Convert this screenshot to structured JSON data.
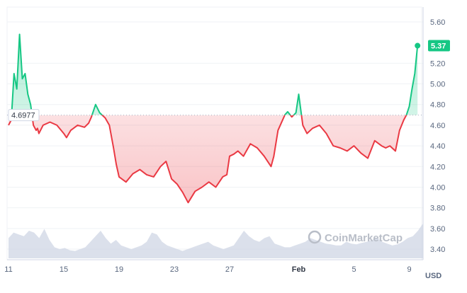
{
  "chart_data": {
    "type": "line",
    "currency": "USD",
    "watermark": "CoinMarketCap",
    "reference_price": 4.6977,
    "reference_label": "4.6977",
    "last_price": 5.37,
    "last_label": "5.37",
    "y_ticks": [
      "5.60",
      "5.20",
      "5.00",
      "4.80",
      "4.60",
      "4.40",
      "4.20",
      "4.00",
      "3.80",
      "3.60",
      "3.40"
    ],
    "y_tick_values": [
      5.6,
      5.2,
      5.0,
      4.8,
      4.6,
      4.4,
      4.2,
      4.0,
      3.8,
      3.6,
      3.4
    ],
    "ylim": [
      3.4,
      5.6
    ],
    "x_ticks": [
      "11",
      "15",
      "19",
      "23",
      "27",
      "Feb",
      "5",
      "9"
    ],
    "x_tick_days": [
      11,
      15,
      19,
      23,
      27,
      32,
      36,
      40
    ],
    "xlim": [
      11,
      41
    ],
    "colors": {
      "up": "#16c784",
      "down": "#ea3943",
      "volume": "#cfd6e4",
      "grid": "#eff2f5"
    },
    "series": [
      {
        "x": [
          11,
          11.2,
          11.4,
          11.6,
          11.8,
          12.0,
          12.2,
          12.4,
          12.6,
          12.8,
          13.0,
          13.1,
          13.2,
          13.5,
          14.0,
          14.5,
          15.0,
          15.2,
          15.5,
          16.0,
          16.5,
          16.8,
          17.0,
          17.3,
          17.6,
          18.0,
          18.3,
          18.6,
          18.8,
          19.0,
          19.5,
          20.0,
          20.5,
          21.0,
          21.5,
          22.0,
          22.4,
          22.8,
          23.2,
          23.6,
          24.0,
          24.5,
          25.0,
          25.5,
          26.0,
          26.5,
          26.8,
          27.0,
          27.3,
          27.6,
          28.0,
          28.5,
          29.0,
          29.5,
          30.0,
          30.2,
          30.5,
          31.0,
          31.2,
          31.5,
          31.8,
          32.0,
          32.3,
          32.6,
          33.0,
          33.5,
          34.0,
          34.5,
          35.0,
          35.5,
          36.0,
          36.5,
          37.0,
          37.5,
          38.0,
          38.3,
          38.6,
          39.0,
          39.3,
          39.6,
          39.8,
          40.0,
          40.2,
          40.4,
          40.6
        ],
        "y": [
          4.6,
          4.65,
          5.1,
          4.95,
          5.48,
          5.05,
          5.1,
          4.9,
          4.8,
          4.6,
          4.55,
          4.57,
          4.52,
          4.6,
          4.63,
          4.6,
          4.52,
          4.48,
          4.55,
          4.6,
          4.58,
          4.62,
          4.68,
          4.8,
          4.72,
          4.67,
          4.6,
          4.38,
          4.22,
          4.1,
          4.05,
          4.13,
          4.17,
          4.12,
          4.1,
          4.2,
          4.25,
          4.08,
          4.03,
          3.95,
          3.85,
          3.96,
          4.0,
          4.05,
          4.0,
          4.1,
          4.12,
          4.3,
          4.32,
          4.35,
          4.3,
          4.42,
          4.38,
          4.3,
          4.2,
          4.3,
          4.55,
          4.7,
          4.73,
          4.68,
          4.72,
          4.9,
          4.6,
          4.52,
          4.57,
          4.6,
          4.52,
          4.4,
          4.38,
          4.35,
          4.4,
          4.33,
          4.28,
          4.45,
          4.4,
          4.38,
          4.4,
          4.35,
          4.55,
          4.65,
          4.7,
          4.78,
          4.95,
          5.1,
          5.37
        ]
      }
    ],
    "volume_relative": [
      0.55,
      0.7,
      0.65,
      0.6,
      0.75,
      0.7,
      0.55,
      0.8,
      0.5,
      0.3,
      0.25,
      0.28,
      0.22,
      0.2,
      0.25,
      0.3,
      0.45,
      0.6,
      0.75,
      0.55,
      0.4,
      0.5,
      0.35,
      0.3,
      0.25,
      0.3,
      0.35,
      0.45,
      0.7,
      0.65,
      0.45,
      0.35,
      0.3,
      0.25,
      0.2,
      0.25,
      0.3,
      0.35,
      0.4,
      0.45,
      0.35,
      0.3,
      0.25,
      0.3,
      0.35,
      0.55,
      0.75,
      0.6,
      0.5,
      0.45,
      0.55,
      0.6,
      0.4,
      0.35,
      0.3,
      0.3,
      0.35,
      0.4,
      0.45,
      0.55,
      0.5,
      0.45,
      0.4,
      0.38,
      0.35,
      0.35,
      0.45,
      0.4,
      0.38,
      0.42,
      0.45,
      0.5,
      0.55,
      0.45,
      0.4,
      0.35,
      0.38,
      0.45,
      0.55,
      0.6,
      0.75,
      0.95
    ],
    "grid": true
  }
}
